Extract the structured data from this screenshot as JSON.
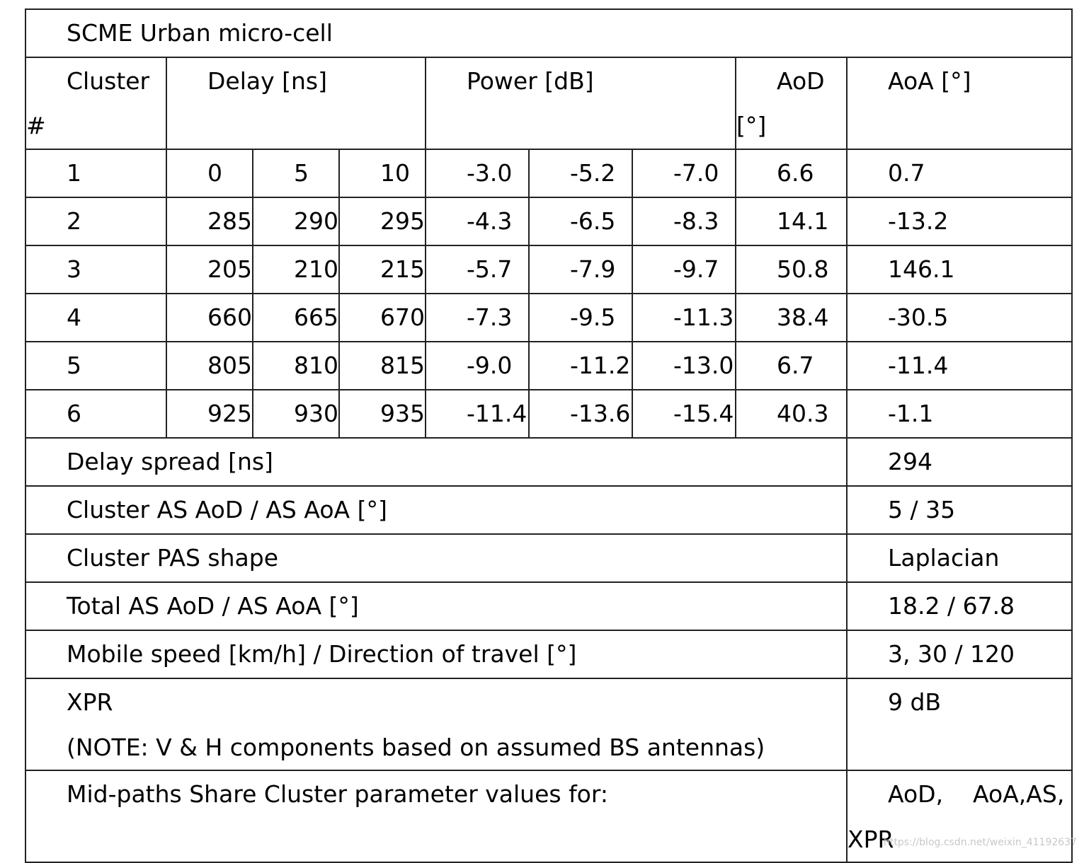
{
  "table": {
    "title": "SCME Urban micro-cell",
    "headers": {
      "cluster": "Cluster",
      "cluster_suffix": "#",
      "delay": "Delay [ns]",
      "power": "Power [dB]",
      "aod": "AoD",
      "aod_suffix": "[°]",
      "aoa": "AoA [°]"
    },
    "rows": [
      {
        "cluster": "1",
        "d1": "0",
        "d2": "5",
        "d3": "10",
        "p1": "-3.0",
        "p2": "-5.2",
        "p3": "-7.0",
        "aod": "6.6",
        "aoa": "0.7"
      },
      {
        "cluster": "2",
        "d1": "285",
        "d2": "290",
        "d3": "295",
        "p1": "-4.3",
        "p2": "-6.5",
        "p3": "-8.3",
        "aod": "14.1",
        "aoa": "-13.2"
      },
      {
        "cluster": "3",
        "d1": "205",
        "d2": "210",
        "d3": "215",
        "p1": "-5.7",
        "p2": "-7.9",
        "p3": "-9.7",
        "aod": "50.8",
        "aoa": "146.1"
      },
      {
        "cluster": "4",
        "d1": "660",
        "d2": "665",
        "d3": "670",
        "p1": "-7.3",
        "p2": "-9.5",
        "p3": "-11.3",
        "aod": "38.4",
        "aoa": "-30.5"
      },
      {
        "cluster": "5",
        "d1": "805",
        "d2": "810",
        "d3": "815",
        "p1": "-9.0",
        "p2": "-11.2",
        "p3": "-13.0",
        "aod": "6.7",
        "aoa": "-11.4"
      },
      {
        "cluster": "6",
        "d1": "925",
        "d2": "930",
        "d3": "935",
        "p1": "-11.4",
        "p2": "-13.6",
        "p3": "-15.4",
        "aod": "40.3",
        "aoa": "-1.1"
      }
    ],
    "params": [
      {
        "label": "Delay spread [ns]",
        "value": "294"
      },
      {
        "label": "Cluster AS AoD / AS AoA [°]",
        "value": "5 / 35"
      },
      {
        "label": "Cluster PAS shape",
        "value": "Laplacian"
      },
      {
        "label": "Total AS AoD / AS AoA [°]",
        "value": "18.2 / 67.8"
      },
      {
        "label": "Mobile speed [km/h] / Direction of travel [°]",
        "value": "3, 30 / 120"
      }
    ],
    "xpr": {
      "label": "XPR",
      "note": "(NOTE: V & H components based on assumed BS antennas)",
      "value": "9 dB"
    },
    "midpaths": {
      "label": "Mid-paths Share Cluster parameter values for:",
      "value_line1": "AoD,    AoA,AS,",
      "value_line2": "XPR"
    }
  },
  "watermark": "https://blog.csdn.net/weixin_41192637"
}
